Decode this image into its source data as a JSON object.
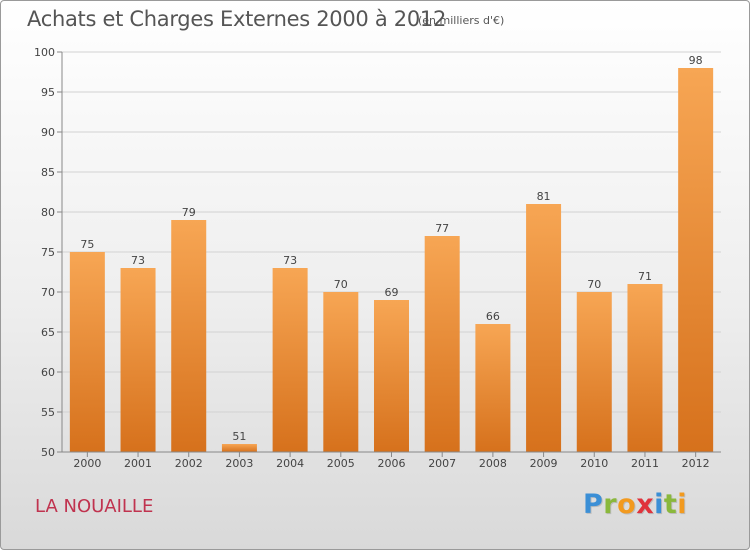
{
  "header": {
    "title": "Achats et Charges Externes 2000 à 2012",
    "unit": "(en milliers d'€)"
  },
  "footer": {
    "place": "LA NOUAILLE",
    "logo": {
      "letters": [
        "P",
        "r",
        "o",
        "x",
        "i",
        "t",
        "i"
      ],
      "colors": [
        "#3b8fd6",
        "#8ab83c",
        "#f29a1f",
        "#e0333c",
        "#3b8fd6",
        "#8ab83c",
        "#f29a1f"
      ]
    }
  },
  "colors": {
    "bar_top": "#f7a654",
    "bar_bottom": "#d6711c",
    "grid": "#d2d2d2",
    "axis": "#888888"
  },
  "chart_data": {
    "type": "bar",
    "title": "Achats et Charges Externes 2000 à 2012",
    "subtitle": "(en milliers d'€)",
    "xlabel": "",
    "ylabel": "",
    "categories": [
      "2000",
      "2001",
      "2002",
      "2003",
      "2004",
      "2005",
      "2006",
      "2007",
      "2008",
      "2009",
      "2010",
      "2011",
      "2012"
    ],
    "values": [
      75,
      73,
      79,
      51,
      73,
      70,
      69,
      77,
      66,
      81,
      70,
      71,
      98
    ],
    "ylim": [
      50,
      100
    ],
    "yticks": [
      50,
      55,
      60,
      65,
      70,
      75,
      80,
      85,
      90,
      95,
      100
    ],
    "grid": true
  }
}
